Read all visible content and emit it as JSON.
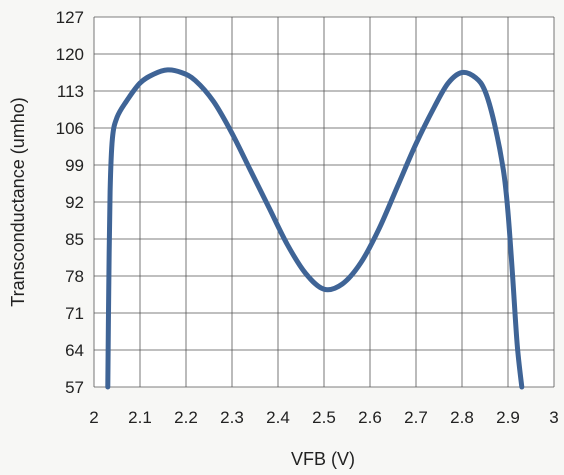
{
  "chart_data": {
    "type": "line",
    "title": "",
    "xlabel": "VFB (V)",
    "ylabel": "Transconductance (umho)",
    "xlim": [
      2,
      3
    ],
    "ylim": [
      57,
      127
    ],
    "x_ticks": [
      2,
      2.1,
      2.2,
      2.3,
      2.4,
      2.5,
      2.6,
      2.7,
      2.8,
      2.9,
      3
    ],
    "x_tick_labels": [
      "2",
      "2.1",
      "2.2",
      "2.3",
      "2.4",
      "2.5",
      "2.6",
      "2.7",
      "2.8",
      "2.9",
      "3"
    ],
    "y_ticks": [
      57,
      64,
      71,
      78,
      85,
      92,
      99,
      106,
      113,
      120,
      127
    ],
    "y_tick_labels": [
      "57",
      "64",
      "71",
      "78",
      "85",
      "92",
      "99",
      "106",
      "113",
      "120",
      "127"
    ],
    "grid": true,
    "legend": "none",
    "series": [
      {
        "color": "#3f6496",
        "x": [
          2.03,
          2.032,
          2.035,
          2.04,
          2.05,
          2.07,
          2.1,
          2.13,
          2.16,
          2.19,
          2.22,
          2.26,
          2.3,
          2.34,
          2.38,
          2.42,
          2.46,
          2.5,
          2.54,
          2.58,
          2.62,
          2.66,
          2.7,
          2.74,
          2.77,
          2.8,
          2.83,
          2.85,
          2.87,
          2.89,
          2.9,
          2.91,
          2.92,
          2.93
        ],
        "y": [
          57,
          75,
          94,
          104,
          108,
          111,
          114.5,
          116.2,
          117,
          116.5,
          115,
          111,
          105,
          98,
          91,
          84,
          78.5,
          75.5,
          76.5,
          80.5,
          87,
          95,
          103,
          110,
          114.5,
          116.5,
          115.5,
          113,
          107,
          98,
          90,
          78,
          65,
          57
        ]
      }
    ]
  }
}
